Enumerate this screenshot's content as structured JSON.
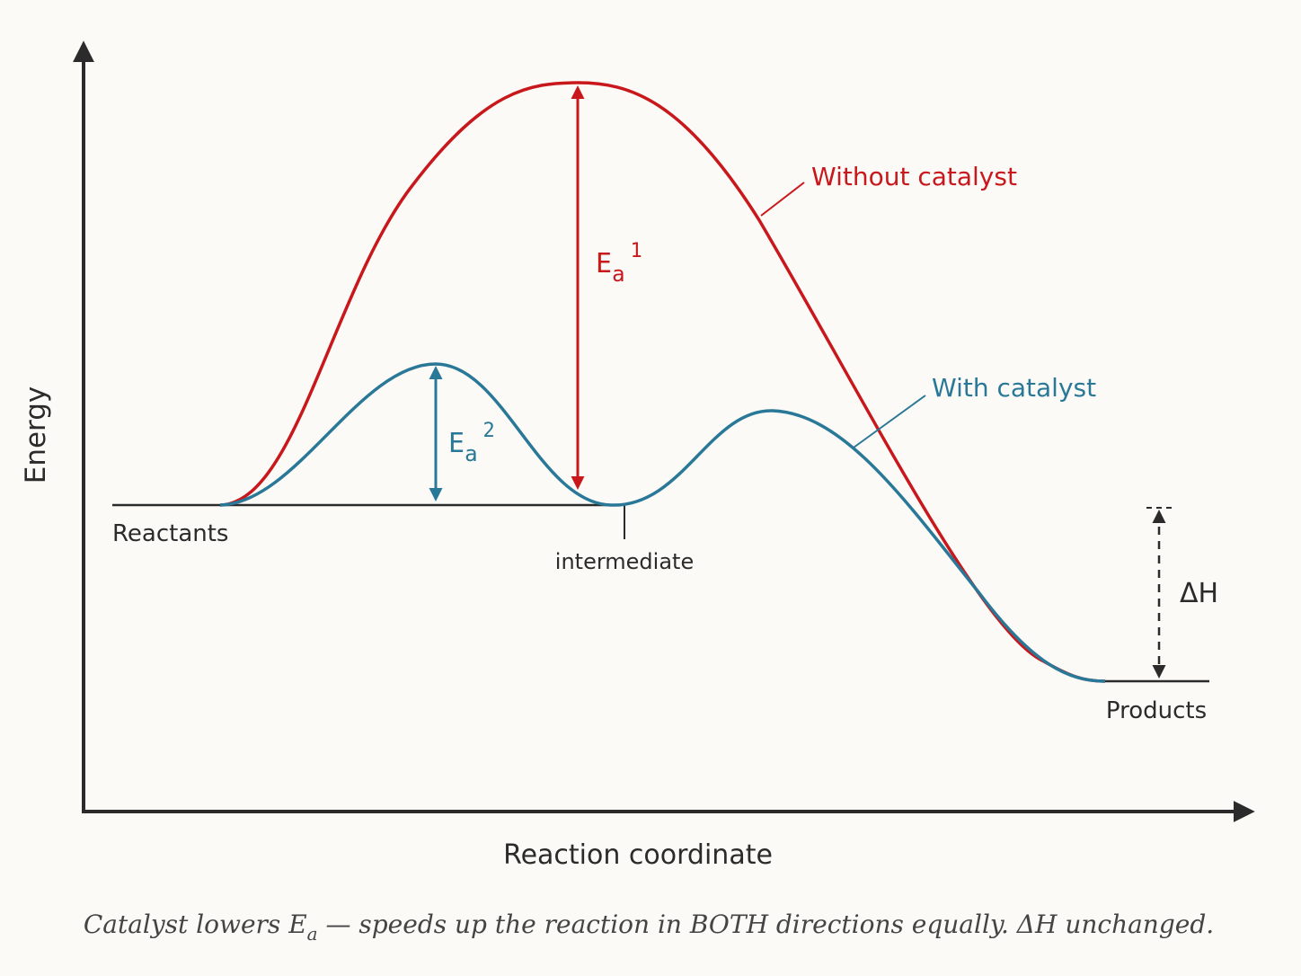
{
  "diagram": {
    "axes": {
      "y_label": "Energy",
      "x_label": "Reaction coordinate"
    },
    "levels": {
      "reactants": "Reactants",
      "products": "Products",
      "intermediate": "intermediate"
    },
    "curves": {
      "uncatalyzed": {
        "label": "Without catalyst",
        "color": "#c8181c"
      },
      "catalyzed": {
        "label": "With catalyst",
        "color": "#2a7898"
      }
    },
    "activation_energy_1": {
      "base": "E",
      "sub": "a",
      "sup": "1"
    },
    "activation_energy_2": {
      "base": "E",
      "sub": "a",
      "sup": "2"
    },
    "enthalpy": {
      "label": "ΔH"
    },
    "caption": {
      "part1": "Catalyst lowers E",
      "sub": "a",
      "part2": " — speeds up the reaction in BOTH directions equally. ΔH unchanged."
    },
    "colors": {
      "axis": "#2b2b2b",
      "background": "#fbfaf6"
    }
  }
}
